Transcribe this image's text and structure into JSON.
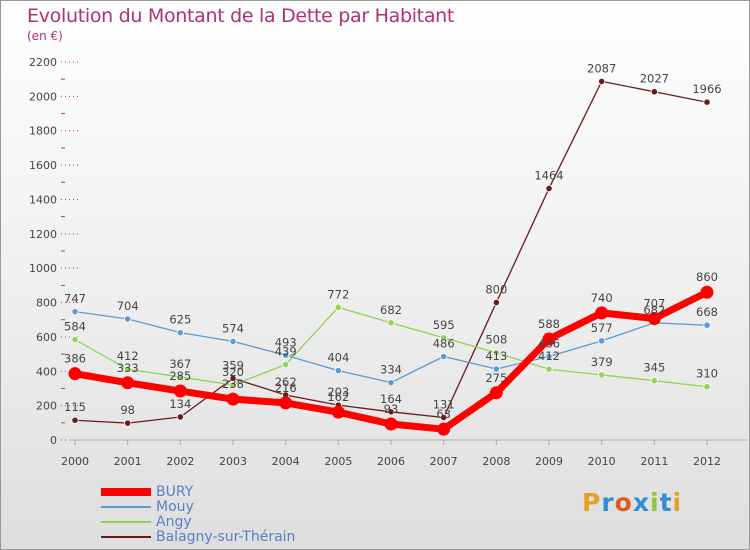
{
  "title": "Evolution du Montant de la Dette par Habitant",
  "unit": "(en €)",
  "logo_text": "Proxiti",
  "logo_colors": [
    "#e8a020",
    "#2f8fd8",
    "#e05a20",
    "#2f8fd8",
    "#8cc63f",
    "#2f8fd8",
    "#e8a020"
  ],
  "colors": {
    "title": "#b03070",
    "grid": "#cc3366",
    "axis": "#aaaaaa",
    "legend_text": "#5a7fc8"
  },
  "chart_data": {
    "type": "line",
    "title": "Evolution du Montant de la Dette par Habitant",
    "xlabel": "",
    "ylabel": "(en €)",
    "x": [
      "2000",
      "2001",
      "2002",
      "2003",
      "2004",
      "2005",
      "2006",
      "2007",
      "2008",
      "2009",
      "2010",
      "2011",
      "2012"
    ],
    "ylim": [
      0,
      2200
    ],
    "yticks": [
      0,
      200,
      400,
      600,
      800,
      1000,
      1200,
      1400,
      1600,
      1800,
      2000,
      2200
    ],
    "legend_position": "bottom-left",
    "series": [
      {
        "name": "BURY",
        "color": "#ff0000",
        "values": [
          386,
          333,
          285,
          238,
          216,
          162,
          93,
          63,
          275,
          588,
          740,
          707,
          860
        ],
        "labels": [
          "386",
          "333",
          "285",
          "238",
          "216",
          "162",
          "93",
          "63",
          "275",
          "588",
          "740",
          "707",
          "860"
        ]
      },
      {
        "name": "Mouy",
        "color": "#5b9bd5",
        "values": [
          747,
          704,
          625,
          574,
          493,
          404,
          334,
          486,
          413,
          486,
          577,
          682,
          668
        ],
        "labels": [
          "747",
          "704",
          "625",
          "574",
          "493",
          "404",
          "334",
          "486",
          "413",
          "486",
          "577",
          "682",
          "668"
        ]
      },
      {
        "name": "Angy",
        "color": "#8fd454",
        "values": [
          584,
          412,
          367,
          320,
          439,
          772,
          682,
          595,
          508,
          412,
          379,
          345,
          310
        ],
        "labels": [
          "584",
          "412",
          "367",
          "320",
          "439",
          "772",
          "682",
          "595",
          "508",
          "412",
          "379",
          "345",
          "310"
        ]
      },
      {
        "name": "Balagny-sur-Thérain",
        "color": "#6b1a1a",
        "values": [
          115,
          98,
          134,
          359,
          262,
          203,
          164,
          131,
          800,
          1464,
          2087,
          2027,
          1966
        ],
        "labels": [
          "115",
          "98",
          "134",
          "359",
          "262",
          "203",
          "164",
          "131",
          "800",
          "1464",
          "2087",
          "2027",
          "1966"
        ]
      }
    ]
  }
}
